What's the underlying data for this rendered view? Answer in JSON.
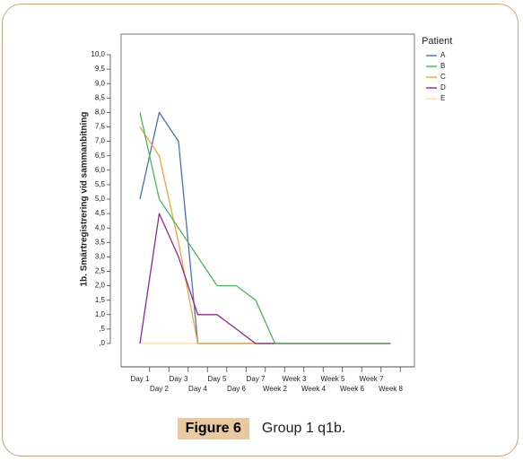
{
  "figure": {
    "label": "Figure 6",
    "caption": "Group 1 q1b."
  },
  "chart_data": {
    "type": "line",
    "title": "",
    "xlabel": "",
    "ylabel": "1b. Smärtregistrering vid sammanbitning",
    "ylim": [
      0,
      10
    ],
    "yticks": [
      "10,0",
      "9,5",
      "9,0",
      "8,5",
      "8,0",
      "7,5",
      "7,0",
      "6,5",
      "6,0",
      "5,5",
      "5,0",
      "4,5",
      "4,0",
      "3,5",
      "3,0",
      "2,5",
      "2,0",
      "1,5",
      "1,0",
      ",5",
      ",0"
    ],
    "ytick_values": [
      10,
      9.5,
      9,
      8.5,
      8,
      7.5,
      7,
      6.5,
      6,
      5.5,
      5,
      4.5,
      4,
      3.5,
      3,
      2.5,
      2,
      1.5,
      1,
      0.5,
      0
    ],
    "categories": [
      "Day 1",
      "Day 2",
      "Day 3",
      "Day 4",
      "Day 5",
      "Day 6",
      "Day 7",
      "Week 2",
      "Week 3",
      "Week 4",
      "Week 5",
      "Week 6",
      "Week 7",
      "Week 8"
    ],
    "grid": false,
    "legend": {
      "title": "Patient",
      "placement": "right"
    },
    "series": [
      {
        "name": "A",
        "color": "#4a6fb5",
        "values": [
          5,
          8,
          7,
          0,
          0,
          0,
          0,
          0,
          0,
          0,
          0,
          0,
          0,
          0
        ]
      },
      {
        "name": "B",
        "color": "#4db35a",
        "values": [
          8,
          5,
          4,
          3,
          2,
          2,
          1.5,
          0,
          0,
          0,
          0,
          0,
          0,
          0
        ]
      },
      {
        "name": "C",
        "color": "#f0a33a",
        "values": [
          7.5,
          6.5,
          3.5,
          0,
          0,
          0,
          0,
          0,
          0,
          0,
          0,
          0,
          0,
          0
        ]
      },
      {
        "name": "D",
        "color": "#8b2a8b",
        "values": [
          0,
          4.5,
          3,
          1,
          1,
          0.5,
          0,
          0,
          0,
          0,
          0,
          0,
          0,
          0
        ]
      },
      {
        "name": "E",
        "color": "#f5e08a",
        "values": [
          0,
          0,
          0,
          0,
          0,
          0,
          0,
          0,
          0,
          0,
          0,
          0,
          0,
          0
        ]
      }
    ]
  }
}
